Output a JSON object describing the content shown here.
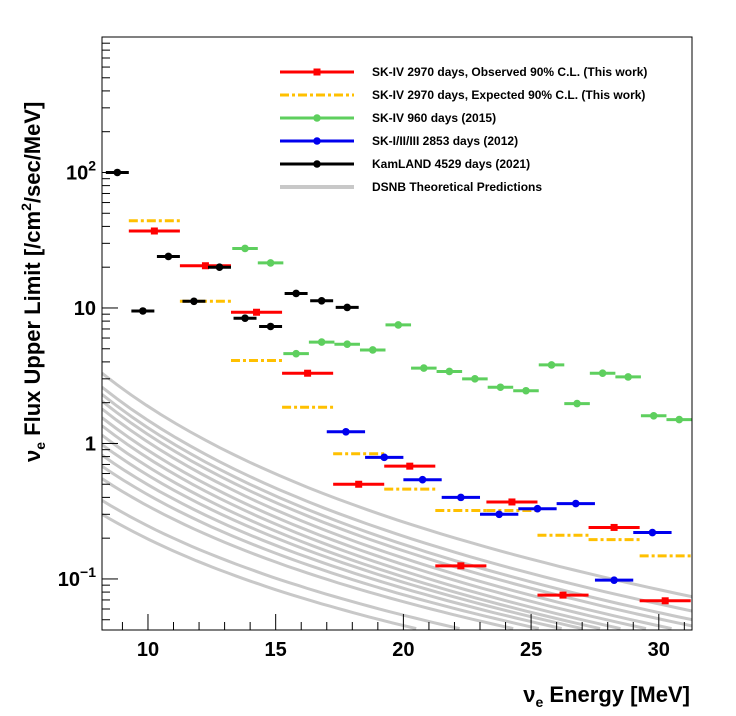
{
  "chart_data": {
    "type": "scatter",
    "xlabel": {
      "prefix": "ν",
      "sub": "e",
      "text": " Energy [MeV]"
    },
    "ylabel": {
      "prefix": "ν",
      "sub": "e",
      "text1": " Flux Upper Limit [/cm",
      "sup": "2",
      "text2": "/sec/MeV]"
    },
    "xlim": [
      8.2,
      31.3
    ],
    "ylim": [
      0.042,
      1000
    ],
    "y_scale": "log",
    "x_ticks": [
      10,
      15,
      20,
      25,
      30
    ],
    "y_ticks": [
      {
        "value": 0.1,
        "base": "10",
        "exp": "−1"
      },
      {
        "value": 1,
        "label": "1"
      },
      {
        "value": 10,
        "label": "10"
      },
      {
        "value": 100,
        "base": "10",
        "exp": "2"
      }
    ],
    "legend": {
      "position": "top-right"
    },
    "series": [
      {
        "name": "SK-IV 2970 days, Observed 90% C.L. (This work)",
        "color": "#ff0000",
        "marker": "square",
        "style": "solid",
        "points": [
          {
            "x": 10.25,
            "y": 37,
            "xerr": 1.0
          },
          {
            "x": 12.25,
            "y": 20.5,
            "xerr": 1.0
          },
          {
            "x": 14.25,
            "y": 9.3,
            "xerr": 1.0
          },
          {
            "x": 16.25,
            "y": 3.3,
            "xerr": 1.0
          },
          {
            "x": 18.25,
            "y": 0.5,
            "xerr": 1.0
          },
          {
            "x": 20.25,
            "y": 0.68,
            "xerr": 1.0
          },
          {
            "x": 22.25,
            "y": 0.125,
            "xerr": 1.0
          },
          {
            "x": 24.25,
            "y": 0.37,
            "xerr": 1.0
          },
          {
            "x": 26.25,
            "y": 0.076,
            "xerr": 1.0
          },
          {
            "x": 28.25,
            "y": 0.24,
            "xerr": 1.0
          },
          {
            "x": 30.25,
            "y": 0.069,
            "xerr": 1.0
          }
        ]
      },
      {
        "name": "SK-IV 2970 days, Expected 90% C.L. (This work)",
        "color": "#ffc000",
        "marker": "none",
        "style": "dashdot",
        "points": [
          {
            "x": 10.25,
            "y": 44,
            "xerr": 1.0
          },
          {
            "x": 12.25,
            "y": 11.2,
            "xerr": 1.0
          },
          {
            "x": 14.25,
            "y": 4.1,
            "xerr": 1.0
          },
          {
            "x": 16.25,
            "y": 1.85,
            "xerr": 1.0
          },
          {
            "x": 18.25,
            "y": 0.84,
            "xerr": 1.0
          },
          {
            "x": 20.25,
            "y": 0.46,
            "xerr": 1.0
          },
          {
            "x": 22.25,
            "y": 0.32,
            "xerr": 1.0
          },
          {
            "x": 24.25,
            "y": 0.32,
            "xerr": 1.0
          },
          {
            "x": 26.25,
            "y": 0.21,
            "xerr": 1.0
          },
          {
            "x": 28.25,
            "y": 0.195,
            "xerr": 1.0
          },
          {
            "x": 30.25,
            "y": 0.148,
            "xerr": 1.0
          }
        ]
      },
      {
        "name": "SK-IV 960 days (2015)",
        "color": "#5ecf5e",
        "marker": "circle",
        "style": "solid",
        "points": [
          {
            "x": 13.8,
            "y": 27.5,
            "xerr": 0.5
          },
          {
            "x": 14.8,
            "y": 21.5,
            "xerr": 0.5
          },
          {
            "x": 15.8,
            "y": 4.6,
            "xerr": 0.5
          },
          {
            "x": 16.8,
            "y": 5.6,
            "xerr": 0.5
          },
          {
            "x": 17.8,
            "y": 5.4,
            "xerr": 0.5
          },
          {
            "x": 18.8,
            "y": 4.9,
            "xerr": 0.5
          },
          {
            "x": 19.8,
            "y": 7.5,
            "xerr": 0.5
          },
          {
            "x": 20.8,
            "y": 3.6,
            "xerr": 0.5
          },
          {
            "x": 21.8,
            "y": 3.4,
            "xerr": 0.5
          },
          {
            "x": 22.8,
            "y": 3.0,
            "xerr": 0.5
          },
          {
            "x": 23.8,
            "y": 2.6,
            "xerr": 0.5
          },
          {
            "x": 24.8,
            "y": 2.45,
            "xerr": 0.5
          },
          {
            "x": 25.8,
            "y": 3.8,
            "xerr": 0.5
          },
          {
            "x": 26.8,
            "y": 1.97,
            "xerr": 0.5
          },
          {
            "x": 27.8,
            "y": 3.3,
            "xerr": 0.5
          },
          {
            "x": 28.8,
            "y": 3.1,
            "xerr": 0.5
          },
          {
            "x": 29.8,
            "y": 1.6,
            "xerr": 0.5
          },
          {
            "x": 30.8,
            "y": 1.5,
            "xerr": 0.5
          }
        ]
      },
      {
        "name": "SK-I/II/III 2853 days (2012)",
        "color": "#0000ee",
        "marker": "circle",
        "style": "solid",
        "points": [
          {
            "x": 17.75,
            "y": 1.22,
            "xerr": 0.75
          },
          {
            "x": 19.25,
            "y": 0.79,
            "xerr": 0.75
          },
          {
            "x": 20.75,
            "y": 0.54,
            "xerr": 0.75
          },
          {
            "x": 22.25,
            "y": 0.4,
            "xerr": 0.75
          },
          {
            "x": 23.75,
            "y": 0.3,
            "xerr": 0.75
          },
          {
            "x": 25.25,
            "y": 0.33,
            "xerr": 0.75
          },
          {
            "x": 26.75,
            "y": 0.36,
            "xerr": 0.75
          },
          {
            "x": 28.25,
            "y": 0.098,
            "xerr": 0.75
          },
          {
            "x": 29.75,
            "y": 0.22,
            "xerr": 0.75
          }
        ]
      },
      {
        "name": "KamLAND 4529 days (2021)",
        "color": "#000000",
        "marker": "circle",
        "style": "solid",
        "points": [
          {
            "x": 8.8,
            "y": 100,
            "xerr": 0.45
          },
          {
            "x": 9.8,
            "y": 9.5,
            "xerr": 0.45
          },
          {
            "x": 10.8,
            "y": 24,
            "xerr": 0.45
          },
          {
            "x": 11.8,
            "y": 11.2,
            "xerr": 0.45
          },
          {
            "x": 12.8,
            "y": 20,
            "xerr": 0.45
          },
          {
            "x": 13.8,
            "y": 8.4,
            "xerr": 0.45
          },
          {
            "x": 14.8,
            "y": 7.3,
            "xerr": 0.45
          },
          {
            "x": 15.8,
            "y": 12.8,
            "xerr": 0.45
          },
          {
            "x": 16.8,
            "y": 11.3,
            "xerr": 0.45
          },
          {
            "x": 17.8,
            "y": 10.1,
            "xerr": 0.45
          }
        ]
      },
      {
        "name": "DSNB Theoretical Predictions",
        "color": "#c8c8c8",
        "marker": "none",
        "style": "curves",
        "curves": [
          [
            [
              8.2,
              3.3
            ],
            [
              31.3,
              0.074
            ]
          ],
          [
            [
              8.2,
              2.6
            ],
            [
              31.3,
              0.058
            ]
          ],
          [
            [
              8.2,
              2.3
            ],
            [
              31.3,
              0.05
            ]
          ],
          [
            [
              8.2,
              2.05
            ],
            [
              31.3,
              0.045
            ]
          ],
          [
            [
              8.2,
              1.8
            ],
            [
              30.5,
              0.043
            ]
          ],
          [
            [
              8.2,
              1.55
            ],
            [
              29.5,
              0.043
            ]
          ],
          [
            [
              8.2,
              1.35
            ],
            [
              28.5,
              0.043
            ]
          ],
          [
            [
              8.2,
              1.15
            ],
            [
              27.7,
              0.043
            ]
          ],
          [
            [
              8.2,
              0.98
            ],
            [
              27.0,
              0.043
            ]
          ],
          [
            [
              8.2,
              0.82
            ],
            [
              26.2,
              0.043
            ]
          ],
          [
            [
              8.2,
              0.68
            ],
            [
              25.3,
              0.043
            ]
          ],
          [
            [
              8.2,
              0.55
            ],
            [
              24.3,
              0.043
            ]
          ],
          [
            [
              8.2,
              0.38
            ],
            [
              22.2,
              0.043
            ]
          ],
          [
            [
              8.2,
              0.3
            ],
            [
              20.5,
              0.043
            ]
          ]
        ]
      }
    ]
  }
}
